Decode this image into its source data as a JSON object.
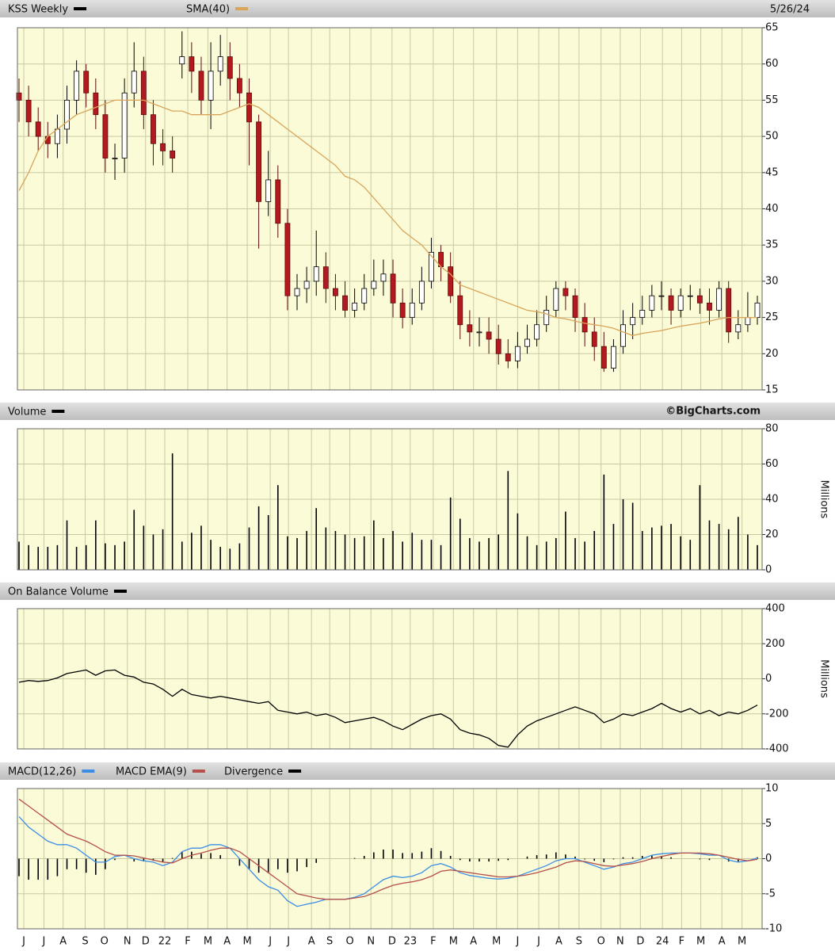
{
  "chart_data": [
    {
      "type": "candlestick",
      "date": "5/26/24",
      "xlim": [
        0,
        77
      ],
      "ylim": [
        15,
        65
      ],
      "yticks": [
        15,
        20,
        25,
        30,
        35,
        40,
        45,
        50,
        55,
        60,
        65
      ],
      "grid": true,
      "up_color": "#ffffff",
      "down_color": "#b3191e",
      "series": [
        {
          "name": "KSS Weekly",
          "color": "#000000",
          "open": [
            56,
            55,
            52,
            50,
            49,
            51,
            55,
            59,
            56,
            53,
            47,
            47,
            56,
            59,
            53,
            49,
            48,
            60,
            61,
            59,
            55,
            59,
            61,
            58,
            56,
            52,
            41,
            44,
            38,
            28,
            29,
            30,
            32,
            29,
            28,
            26,
            27,
            29,
            30,
            31,
            27,
            25,
            27,
            30,
            34,
            32,
            28,
            24,
            23,
            23,
            22,
            20,
            19,
            21,
            22,
            24,
            26,
            29,
            28,
            25,
            23,
            21,
            18,
            21,
            24,
            25,
            26,
            28,
            28,
            26,
            28,
            28,
            27,
            26,
            29,
            23,
            24,
            25
          ],
          "high": [
            58,
            57,
            54,
            52,
            53,
            57,
            60.5,
            60,
            58,
            55,
            49,
            58,
            63,
            61,
            55,
            51,
            50,
            64.5,
            63,
            61,
            63,
            64,
            63,
            60,
            58,
            53,
            48,
            46,
            40,
            31,
            32,
            37,
            34,
            31,
            30,
            29,
            31,
            33,
            33,
            33,
            29,
            29,
            32,
            36,
            35,
            34,
            30,
            26,
            25,
            25,
            24,
            22,
            23,
            24,
            26,
            28,
            30,
            30,
            29,
            27,
            25,
            23,
            22,
            26,
            27,
            28,
            29.5,
            30,
            29,
            29,
            29.5,
            29,
            29,
            30,
            30,
            26,
            28.5,
            28
          ],
          "low": [
            52,
            50,
            48,
            47,
            47,
            49,
            53,
            54,
            51,
            45,
            44,
            45,
            54,
            51,
            46,
            46,
            45,
            58,
            56,
            53,
            51,
            57,
            55,
            54,
            46,
            34.5,
            39,
            36,
            26,
            26,
            27,
            28,
            27,
            26,
            25,
            25,
            26,
            28,
            28,
            25,
            23.5,
            24,
            26,
            29,
            30,
            27,
            22,
            21,
            21,
            20,
            18.5,
            18,
            18,
            20,
            21,
            23,
            25,
            26,
            23,
            21,
            19,
            17.5,
            17.5,
            20,
            22,
            24,
            25,
            26,
            24,
            25,
            26,
            25.5,
            24,
            25,
            21.5,
            22,
            23,
            24
          ],
          "close": [
            55,
            52,
            50,
            49,
            51,
            55,
            59,
            56,
            53,
            47,
            47,
            56,
            59,
            53,
            49,
            48,
            47,
            61,
            59,
            55,
            59,
            61,
            58,
            56,
            52,
            41,
            44,
            38,
            28,
            29,
            30,
            32,
            29,
            28,
            26,
            27,
            29,
            30,
            31,
            27,
            25,
            27,
            30,
            34,
            32,
            28,
            24,
            23,
            23,
            22,
            20,
            19,
            21,
            22,
            24,
            26,
            29,
            28,
            25,
            23,
            21,
            18,
            21,
            24,
            25,
            26,
            28,
            28,
            26,
            28,
            28,
            27,
            26,
            29,
            23,
            24,
            25,
            27
          ]
        },
        {
          "name": "SMA(40)",
          "type": "line",
          "color": "#d9a55a",
          "values": [
            42.5,
            45,
            48,
            50,
            51,
            52,
            53,
            53.5,
            54,
            54.5,
            55,
            55,
            55,
            55,
            54.5,
            54,
            53.5,
            53.5,
            53,
            53,
            53,
            53,
            53.5,
            54,
            54.5,
            54,
            53,
            52,
            51,
            50,
            49,
            48,
            47,
            46,
            44.5,
            44,
            43,
            41.5,
            40,
            38.5,
            37,
            36,
            35,
            33.5,
            32,
            31,
            29.5,
            29,
            28.5,
            28,
            27.5,
            27,
            26.5,
            26,
            25.8,
            25.5,
            25,
            24.8,
            24.5,
            24.2,
            24,
            23.8,
            23.5,
            23,
            22.5,
            22.8,
            23,
            23.2,
            23.5,
            23.8,
            24,
            24.2,
            24.5,
            24.8,
            25,
            25,
            25,
            25
          ]
        }
      ]
    },
    {
      "type": "bar",
      "credit": "©BigCharts.com",
      "ylabel": "Millions",
      "xlim": [
        0,
        77
      ],
      "ylim": [
        0,
        80
      ],
      "yticks": [
        0,
        20,
        40,
        60,
        80
      ],
      "grid": true,
      "series": [
        {
          "name": "Volume",
          "color": "#000000",
          "values": [
            16,
            14,
            13,
            13,
            14,
            28,
            13,
            14,
            28,
            15,
            14,
            16,
            34,
            25,
            20,
            23,
            66,
            16,
            21,
            25,
            17,
            13,
            12,
            15,
            24,
            36,
            31,
            48,
            19,
            18,
            22,
            35,
            24,
            22,
            20,
            18,
            19,
            28,
            18,
            22,
            16,
            21,
            17,
            17,
            14,
            41,
            29,
            18,
            16,
            18,
            20,
            56,
            32,
            19,
            14,
            16,
            18,
            33,
            18,
            16,
            22,
            54,
            26,
            40,
            38,
            22,
            24,
            25,
            26,
            19,
            17,
            48,
            28,
            26,
            23,
            30,
            20,
            14
          ]
        }
      ]
    },
    {
      "type": "line",
      "ylabel": "Millions",
      "xlim": [
        0,
        77
      ],
      "ylim": [
        -400,
        400
      ],
      "yticks": [
        -400,
        -200,
        0,
        200,
        400
      ],
      "grid": true,
      "series": [
        {
          "name": "On Balance Volume",
          "color": "#000000",
          "values": [
            -20,
            -10,
            -15,
            -10,
            5,
            30,
            40,
            50,
            20,
            45,
            50,
            20,
            10,
            -20,
            -30,
            -60,
            -100,
            -60,
            -90,
            -100,
            -110,
            -100,
            -110,
            -120,
            -130,
            -140,
            -130,
            -180,
            -190,
            -200,
            -190,
            -210,
            -200,
            -220,
            -250,
            -240,
            -230,
            -220,
            -240,
            -270,
            -290,
            -260,
            -230,
            -210,
            -200,
            -230,
            -290,
            -310,
            -320,
            -340,
            -380,
            -390,
            -320,
            -270,
            -240,
            -220,
            -200,
            -180,
            -160,
            -180,
            -200,
            -250,
            -230,
            -200,
            -210,
            -190,
            -170,
            -140,
            -170,
            -190,
            -170,
            -200,
            -180,
            -210,
            -190,
            -200,
            -180,
            -150
          ]
        }
      ]
    },
    {
      "type": "line",
      "xlim": [
        0,
        77
      ],
      "ylim": [
        -10,
        10
      ],
      "yticks": [
        -10,
        -5,
        0,
        5,
        10
      ],
      "grid": true,
      "xticks": [
        {
          "value": 0.5,
          "label": "J"
        },
        {
          "value": 2.6,
          "label": "J"
        },
        {
          "value": 4.6,
          "label": "A"
        },
        {
          "value": 6.9,
          "label": "S"
        },
        {
          "value": 8.9,
          "label": "O"
        },
        {
          "value": 11.3,
          "label": "N"
        },
        {
          "value": 13.2,
          "label": "D"
        },
        {
          "value": 15.2,
          "label": "22"
        },
        {
          "value": 17.6,
          "label": "F"
        },
        {
          "value": 19.7,
          "label": "M"
        },
        {
          "value": 21.7,
          "label": "A"
        },
        {
          "value": 23.8,
          "label": "M"
        },
        {
          "value": 26.2,
          "label": "J"
        },
        {
          "value": 28.1,
          "label": "J"
        },
        {
          "value": 30.5,
          "label": "A"
        },
        {
          "value": 32.4,
          "label": "S"
        },
        {
          "value": 34.5,
          "label": "O"
        },
        {
          "value": 36.7,
          "label": "N"
        },
        {
          "value": 38.9,
          "label": "D"
        },
        {
          "value": 40.8,
          "label": "23"
        },
        {
          "value": 43.2,
          "label": "F"
        },
        {
          "value": 45.3,
          "label": "M"
        },
        {
          "value": 47.4,
          "label": "A"
        },
        {
          "value": 49.8,
          "label": "M"
        },
        {
          "value": 52,
          "label": "J"
        },
        {
          "value": 54.2,
          "label": "J"
        },
        {
          "value": 56.3,
          "label": "A"
        },
        {
          "value": 58.4,
          "label": "S"
        },
        {
          "value": 60.7,
          "label": "O"
        },
        {
          "value": 62.7,
          "label": "N"
        },
        {
          "value": 64.8,
          "label": "D"
        },
        {
          "value": 67.1,
          "label": "24"
        },
        {
          "value": 69.1,
          "label": "F"
        },
        {
          "value": 71.1,
          "label": "M"
        },
        {
          "value": 73.3,
          "label": "A"
        },
        {
          "value": 75.4,
          "label": "M"
        }
      ],
      "series": [
        {
          "name": "MACD(12,26)",
          "color": "#3a8ee6",
          "values": [
            6,
            4.5,
            3.5,
            2.5,
            2,
            2,
            1.5,
            0.5,
            -0.5,
            -0.5,
            0.3,
            0.5,
            0,
            -0.3,
            -0.5,
            -1,
            -0.5,
            1,
            1.5,
            1.5,
            2,
            2,
            1.5,
            0,
            -1.5,
            -3,
            -4,
            -4.5,
            -6,
            -6.8,
            -6.5,
            -6.2,
            -5.8,
            -5.8,
            -5.8,
            -5.5,
            -5,
            -4,
            -3,
            -2.5,
            -2.7,
            -2.5,
            -2,
            -1,
            -0.7,
            -1.2,
            -2,
            -2.4,
            -2.6,
            -2.8,
            -2.9,
            -2.8,
            -2.5,
            -2,
            -1.5,
            -1,
            -0.3,
            0,
            0,
            -0.5,
            -1,
            -1.5,
            -1.2,
            -0.7,
            -0.5,
            0,
            0.5,
            0.7,
            0.8,
            0.8,
            0.8,
            0.7,
            0.5,
            0.5,
            -0.2,
            -0.5,
            -0.3,
            0.1
          ]
        },
        {
          "name": "MACD EMA(9)",
          "color": "#b5504a",
          "values": [
            8.5,
            7.5,
            6.5,
            5.5,
            4.5,
            3.5,
            3,
            2.5,
            1.8,
            1,
            0.5,
            0.5,
            0.4,
            0.1,
            -0.2,
            -0.5,
            -0.6,
            0,
            0.5,
            0.8,
            1.2,
            1.5,
            1.5,
            1,
            0,
            -1,
            -2,
            -3,
            -4,
            -5,
            -5.3,
            -5.6,
            -5.8,
            -5.8,
            -5.8,
            -5.6,
            -5.4,
            -4.9,
            -4.3,
            -3.8,
            -3.5,
            -3.3,
            -3,
            -2.5,
            -1.8,
            -1.6,
            -1.8,
            -2,
            -2.2,
            -2.4,
            -2.6,
            -2.6,
            -2.5,
            -2.3,
            -2,
            -1.6,
            -1.2,
            -0.6,
            -0.3,
            -0.4,
            -0.7,
            -1,
            -1.1,
            -0.9,
            -0.7,
            -0.4,
            0,
            0.3,
            0.6,
            0.8,
            0.8,
            0.8,
            0.7,
            0.5,
            0.2,
            -0.1,
            -0.3,
            -0.1
          ]
        },
        {
          "name": "Divergence",
          "type": "bar",
          "color": "#000000",
          "values": [
            -2.5,
            -3,
            -3,
            -3,
            -2.5,
            -1.5,
            -1.5,
            -2,
            -2.3,
            -1.5,
            -0.2,
            0,
            -0.4,
            -0.4,
            -0.3,
            -0.5,
            0.1,
            1,
            1,
            0.7,
            0.8,
            0.5,
            0,
            -1,
            -1.5,
            -2,
            -2,
            -1.5,
            -2,
            -1.8,
            -1.2,
            -0.6,
            0,
            0,
            0,
            0.1,
            0.4,
            0.9,
            1.3,
            1.3,
            0.8,
            0.8,
            1,
            1.5,
            1.1,
            0.4,
            -0.2,
            -0.4,
            -0.4,
            -0.4,
            -0.3,
            -0.2,
            0,
            0.3,
            0.5,
            0.6,
            0.9,
            0.6,
            0.3,
            -0.1,
            -0.3,
            -0.5,
            -0.1,
            0.2,
            0.2,
            0.4,
            0.5,
            0.4,
            0.2,
            0,
            0,
            -0.1,
            -0.2,
            0,
            -0.4,
            -0.4,
            0,
            0.2
          ]
        }
      ]
    }
  ]
}
